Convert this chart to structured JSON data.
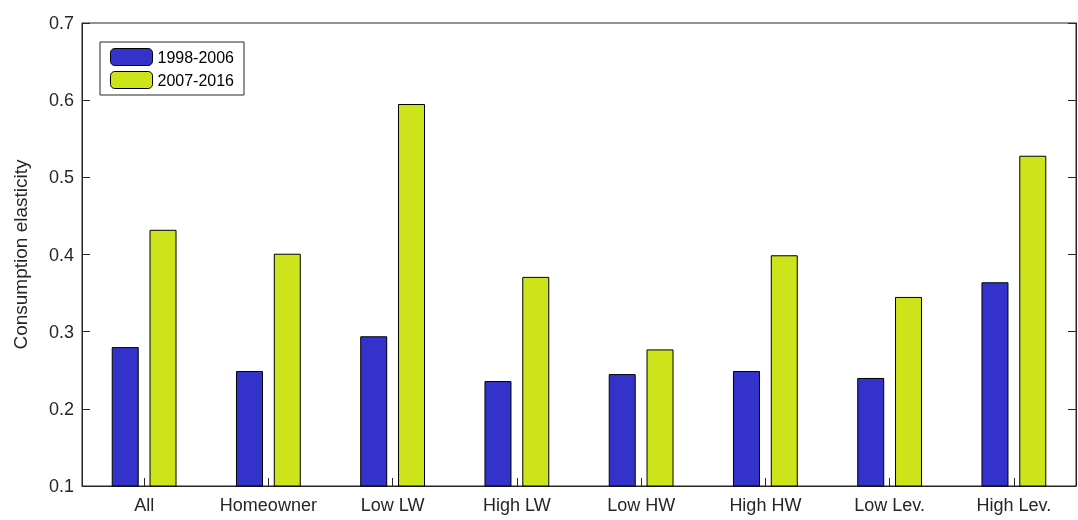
{
  "chart_data": {
    "type": "bar",
    "ylabel": "Consumption elasticity",
    "categories": [
      "All",
      "Homeowner",
      "Low LW",
      "High LW",
      "Low HW",
      "High HW",
      "Low Lev.",
      "High Lev."
    ],
    "series": [
      {
        "name": "1998-2006",
        "color": "#3333cc",
        "values": [
          0.28,
          0.249,
          0.294,
          0.236,
          0.245,
          0.249,
          0.24,
          0.364
        ]
      },
      {
        "name": "2007-2016",
        "color": "#cde31a",
        "values": [
          0.432,
          0.401,
          0.595,
          0.371,
          0.277,
          0.399,
          0.345,
          0.528
        ]
      }
    ],
    "ylim": [
      0.1,
      0.7
    ],
    "yticks": [
      0.1,
      0.2,
      0.3,
      0.4,
      0.5,
      0.6,
      0.7
    ],
    "grid": false,
    "legend": "top left"
  }
}
